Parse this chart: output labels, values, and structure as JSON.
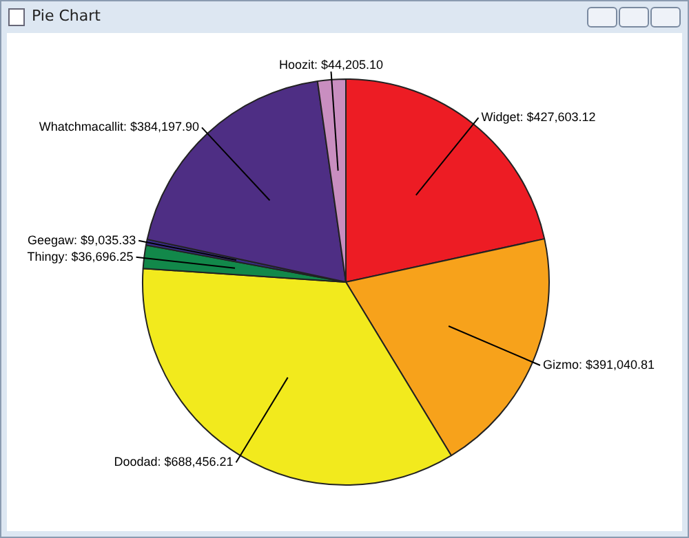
{
  "chart_data": {
    "type": "pie",
    "title": "Pie Chart",
    "categories": [
      "Widget",
      "Gizmo",
      "Doodad",
      "Thingy",
      "Geegaw",
      "Whatchmacallit",
      "Hoozit"
    ],
    "values": [
      427603.12,
      391040.81,
      688456.21,
      36696.25,
      9035.33,
      384197.9,
      44205.1
    ],
    "value_labels": [
      "$427,603.12",
      "$391,040.81",
      "$688,456.21",
      "$36,696.25",
      "$9,035.33",
      "$384,197.90",
      "$44,205.10"
    ],
    "colors": [
      "#ed1c24",
      "#f7a21b",
      "#f2ea1d",
      "#12884a",
      "#3a2c8a",
      "#4e2e84",
      "#c98ec0"
    ]
  }
}
